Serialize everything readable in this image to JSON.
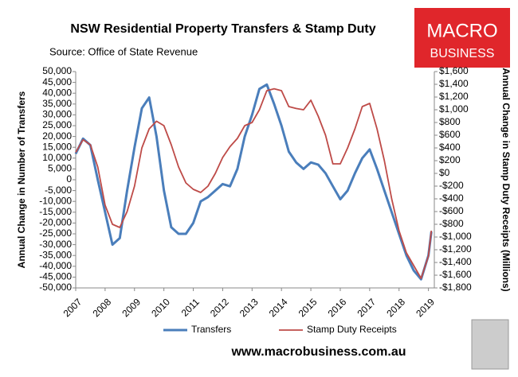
{
  "chart_data": {
    "type": "line",
    "title": "NSW Residential Property Transfers & Stamp Duty",
    "subtitle": "Source: Office of State Revenue",
    "y_label": "Annual Change in Number of Transfers",
    "y2_label": "Annual Change in Stamp Duty Receipts (Millions)",
    "x": [
      2007,
      2007.25,
      2007.5,
      2007.75,
      2008,
      2008.25,
      2008.5,
      2008.75,
      2009,
      2009.25,
      2009.5,
      2009.75,
      2010,
      2010.25,
      2010.5,
      2010.75,
      2011,
      2011.25,
      2011.5,
      2011.75,
      2012,
      2012.25,
      2012.5,
      2012.75,
      2013,
      2013.25,
      2013.5,
      2013.75,
      2014,
      2014.25,
      2014.5,
      2014.75,
      2015,
      2015.25,
      2015.5,
      2015.75,
      2016,
      2016.25,
      2016.5,
      2016.75,
      2017,
      2017.25,
      2017.5,
      2017.75,
      2018,
      2018.25,
      2018.5,
      2018.75,
      2019,
      2019.1
    ],
    "xlim": [
      2007,
      2019.2
    ],
    "xticks": [
      2007,
      2008,
      2009,
      2010,
      2011,
      2012,
      2013,
      2014,
      2015,
      2016,
      2017,
      2018,
      2019
    ],
    "ylim": [
      -50000,
      50000
    ],
    "yticks": [
      {
        "value": 50000,
        "label": "50,000"
      },
      {
        "value": 45000,
        "label": "45,000"
      },
      {
        "value": 40000,
        "label": "40,000"
      },
      {
        "value": 35000,
        "label": "35,000"
      },
      {
        "value": 30000,
        "label": "30,000"
      },
      {
        "value": 25000,
        "label": "25,000"
      },
      {
        "value": 20000,
        "label": "20,000"
      },
      {
        "value": 15000,
        "label": "15,000"
      },
      {
        "value": 10000,
        "label": "10,000"
      },
      {
        "value": 5000,
        "label": "5,000"
      },
      0,
      {
        "value": -5000,
        "label": "-5,000"
      },
      {
        "value": -10000,
        "label": "-10,000"
      },
      {
        "value": -15000,
        "label": "-15,000"
      },
      {
        "value": -20000,
        "label": "-20,000"
      },
      {
        "value": -25000,
        "label": "-25,000"
      },
      {
        "value": -30000,
        "label": "-30,000"
      },
      {
        "value": -35000,
        "label": "-35,000"
      },
      {
        "value": -40000,
        "label": "-40,000"
      },
      {
        "value": -45000,
        "label": "-45,000"
      },
      {
        "value": -50000,
        "label": "-50,000"
      }
    ],
    "y2lim": [
      -1800,
      1600
    ],
    "y2ticks": [
      {
        "value": 1600,
        "label": "$1,600"
      },
      {
        "value": 1400,
        "label": "$1,400"
      },
      {
        "value": 1200,
        "label": "$1,200"
      },
      {
        "value": 1000,
        "label": "$1,000"
      },
      {
        "value": 800,
        "label": "$800"
      },
      {
        "value": 600,
        "label": "$600"
      },
      {
        "value": 400,
        "label": "$400"
      },
      {
        "value": 200,
        "label": "$200"
      },
      {
        "value": 0,
        "label": "$0"
      },
      {
        "value": -200,
        "label": "-$200"
      },
      {
        "value": -400,
        "label": "-$400"
      },
      {
        "value": -600,
        "label": "-$600"
      },
      {
        "value": -800,
        "label": "-$800"
      },
      {
        "value": -1000,
        "label": "-$1,000"
      },
      {
        "value": -1200,
        "label": "-$1,200"
      },
      {
        "value": -1400,
        "label": "-$1,400"
      },
      {
        "value": -1600,
        "label": "-$1,600"
      },
      {
        "value": -1800,
        "label": "-$1,800"
      }
    ],
    "series": [
      {
        "name": "Transfers",
        "color": "#4a7ebb",
        "values": [
          12000,
          19000,
          16000,
          0,
          -15000,
          -30000,
          -27000,
          -5000,
          15000,
          33000,
          38000,
          20000,
          -5000,
          -22000,
          -25000,
          -25000,
          -20000,
          -10000,
          -8000,
          -5000,
          -2000,
          -3000,
          5000,
          20000,
          30000,
          42000,
          44000,
          35000,
          25000,
          13000,
          8000,
          5000,
          8000,
          7000,
          3000,
          -3000,
          -9000,
          -5000,
          3000,
          10000,
          14000,
          5000,
          -5000,
          -15000,
          -25000,
          -35000,
          -42000,
          -46000,
          -35000,
          -24000
        ]
      },
      {
        "name": "Stamp Duty Receipts",
        "color": "#be4b48",
        "axis": "y2",
        "values": [
          330,
          530,
          450,
          100,
          -500,
          -800,
          -850,
          -600,
          -200,
          400,
          700,
          820,
          750,
          450,
          100,
          -150,
          -250,
          -300,
          -200,
          0,
          250,
          420,
          550,
          750,
          800,
          1000,
          1300,
          1330,
          1300,
          1050,
          1020,
          1000,
          1150,
          900,
          600,
          150,
          150,
          400,
          700,
          1050,
          1100,
          700,
          200,
          -400,
          -900,
          -1250,
          -1450,
          -1650,
          -1300,
          -900
        ]
      }
    ]
  },
  "logo": {
    "line1": "MACRO",
    "line2": "BUSINESS"
  },
  "footer": "www.macrobusiness.com.au"
}
